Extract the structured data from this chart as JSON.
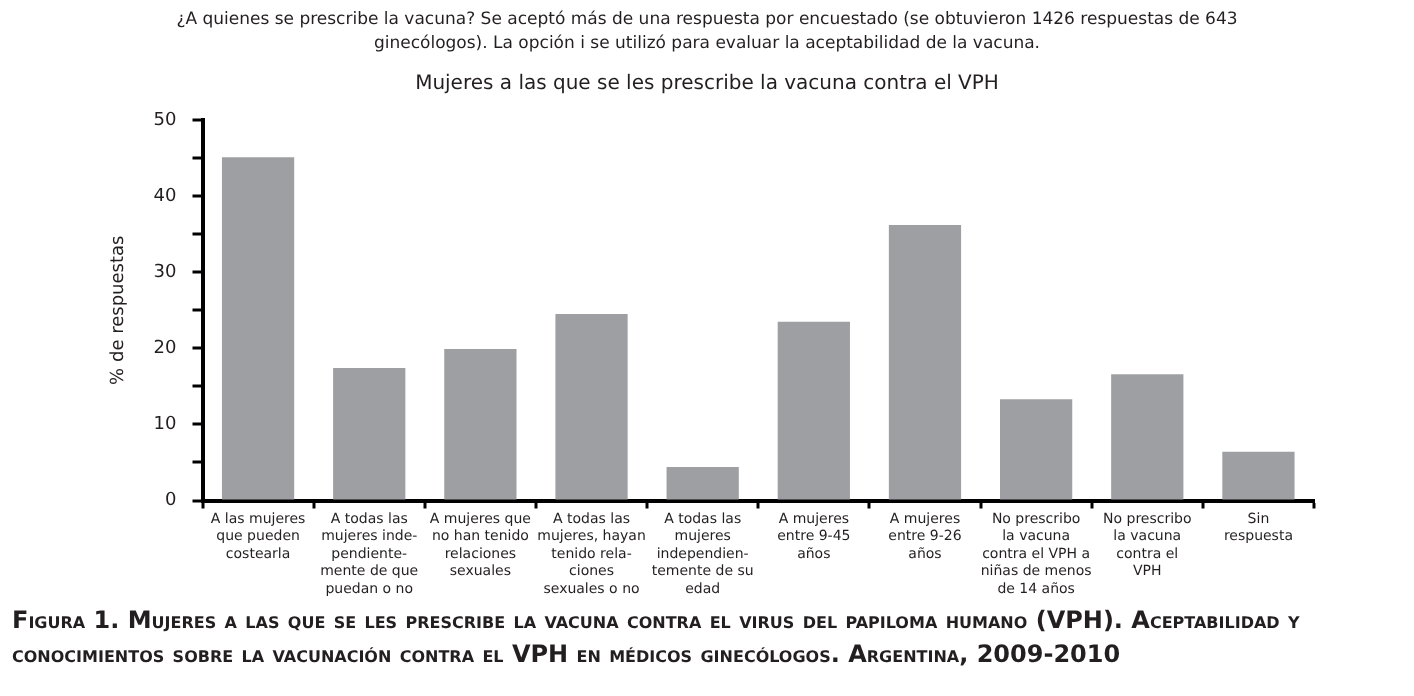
{
  "chart_data": {
    "type": "bar",
    "title": "Mujeres a las que se les prescribe la vacuna contra el VPH",
    "ylabel": "% de respuestas",
    "categories": [
      "A las mujeres\nque pueden\ncostearla",
      "A todas las\nmujeres inde-\npendiente-\nmente de que\npuedan o no",
      "A mujeres que\nno han tenido\nrelaciones\nsexuales",
      "A todas las\nmujeres, hayan\ntenido rela-\nciones\nsexuales o no",
      "A todas las\nmujeres\nindependien-\ntemente de su\nedad",
      "A mujeres\nentre 9-45\naños",
      "A mujeres\nentre 9-26\naños",
      "No prescribo\nla vacuna\ncontra el VPH a\nniñas de menos\nde 14 años",
      "No prescribo\nla vacuna\ncontra el\nVPH",
      "Sin\nrespuesta"
    ],
    "values": [
      45.1,
      17.4,
      19.9,
      24.5,
      4.4,
      23.5,
      36.2,
      13.3,
      16.6,
      6.4
    ],
    "color": "#9d9fa2",
    "ylim": [
      0,
      50
    ],
    "yticks": [
      0,
      {
        "value": 5,
        "label": null
      },
      10,
      {
        "value": 15,
        "label": null
      },
      20,
      {
        "value": 25,
        "label": null
      },
      30,
      {
        "value": 35,
        "label": null
      },
      40,
      {
        "value": 45,
        "label": null
      },
      50
    ],
    "grid": false,
    "legend": false,
    "annotations": [
      "¿A quienes se prescribe la vacuna? Se aceptó más de una respuesta por encuestado (se obtuvieron 1426 respuestas de 643 ginecólogos). La opción i se utilizó para evaluar la aceptabilidad de la vacuna.",
      "Figura 1. Mujeres a las que se les prescribe la vacuna contra el virus del papiloma humano (VPH). Aceptabilidad y conocimientos sobre la vacunación contra el VPH en médicos ginecólogos. Argentina, 2009-2010"
    ]
  }
}
